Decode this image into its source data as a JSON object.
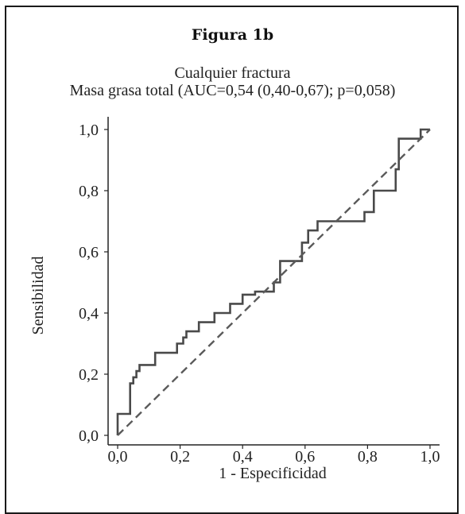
{
  "figure_label": "Figura 1b",
  "chart_data": {
    "type": "line",
    "title": "Cualquier fractura",
    "subtitle": "Masa grasa total (AUC=0,54 (0,40-0,67); p=0,058)",
    "xlabel": "1 - Especificidad",
    "ylabel": "Sensibilidad",
    "xlim": [
      0,
      1
    ],
    "ylim": [
      0,
      1
    ],
    "xticks": [
      "0,0",
      "0,2",
      "0,4",
      "0,6",
      "0,8",
      "1,0"
    ],
    "yticks": [
      "0,0",
      "0,2",
      "0,4",
      "0,6",
      "0,8",
      "1,0"
    ],
    "grid": false,
    "series": [
      {
        "style": "solid",
        "x": [
          0.0,
          0.0,
          0.04,
          0.04,
          0.05,
          0.05,
          0.06,
          0.06,
          0.07,
          0.07,
          0.08,
          0.08,
          0.12,
          0.12,
          0.19,
          0.19,
          0.21,
          0.21,
          0.22,
          0.22,
          0.26,
          0.26,
          0.31,
          0.31,
          0.36,
          0.36,
          0.4,
          0.4,
          0.44,
          0.44,
          0.5,
          0.5,
          0.52,
          0.52,
          0.59,
          0.59,
          0.61,
          0.61,
          0.64,
          0.64,
          0.79,
          0.79,
          0.82,
          0.82,
          0.89,
          0.89,
          0.9,
          0.9,
          0.97,
          0.97,
          1.0
        ],
        "y": [
          0.0,
          0.07,
          0.07,
          0.17,
          0.17,
          0.19,
          0.19,
          0.21,
          0.21,
          0.23,
          0.23,
          0.23,
          0.23,
          0.27,
          0.27,
          0.3,
          0.3,
          0.32,
          0.32,
          0.34,
          0.34,
          0.37,
          0.37,
          0.4,
          0.4,
          0.43,
          0.43,
          0.46,
          0.46,
          0.47,
          0.47,
          0.5,
          0.5,
          0.57,
          0.57,
          0.63,
          0.63,
          0.67,
          0.67,
          0.7,
          0.7,
          0.73,
          0.73,
          0.8,
          0.8,
          0.87,
          0.87,
          0.97,
          0.97,
          1.0,
          1.0
        ]
      },
      {
        "style": "dashed",
        "x": [
          0,
          1
        ],
        "y": [
          0,
          1
        ]
      }
    ]
  }
}
